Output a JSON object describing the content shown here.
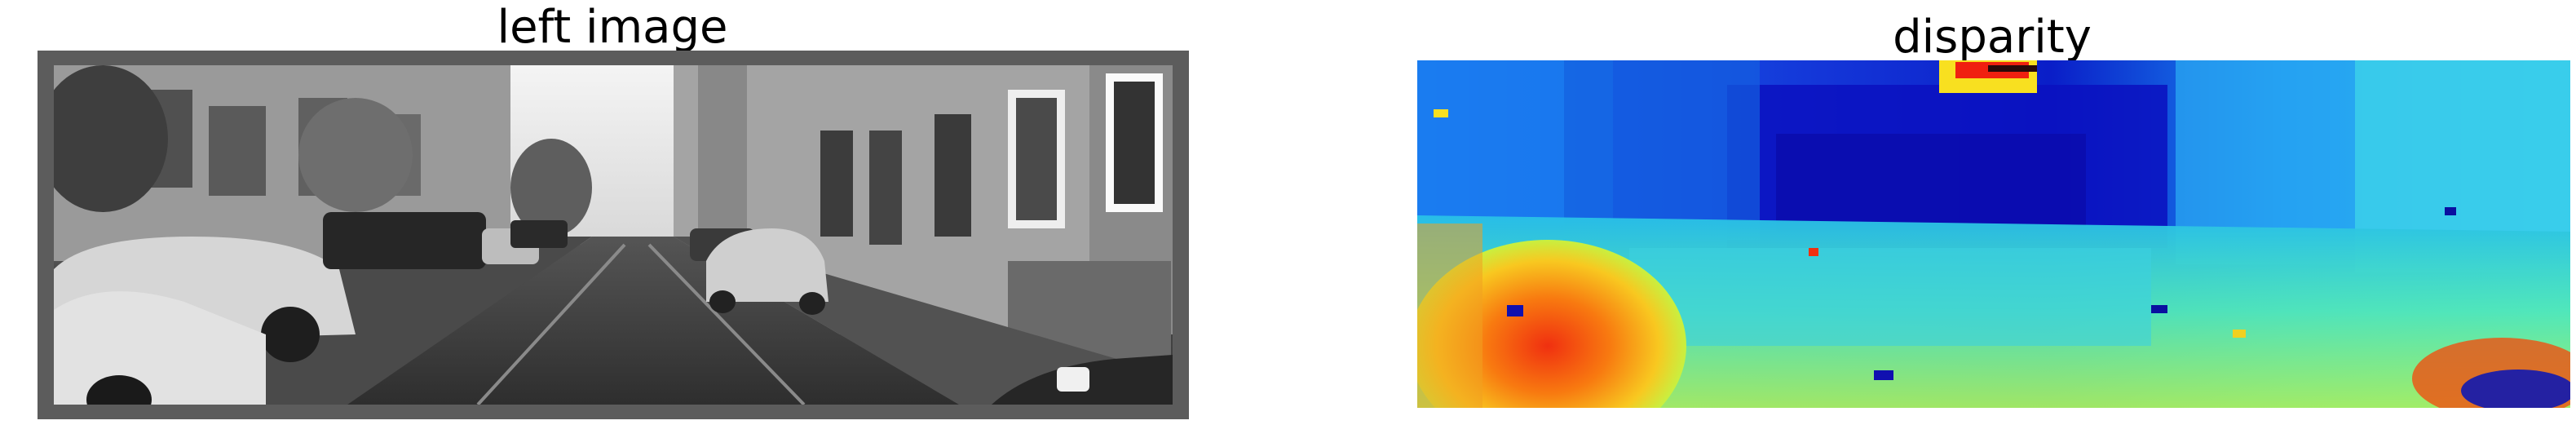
{
  "panels": {
    "left": {
      "title": "left image"
    },
    "right": {
      "title": "disparity"
    }
  },
  "colors": {
    "frame": "#5c5c5c",
    "disparity_far": "#0010c8",
    "disparity_mid": "#22c8e8",
    "disparity_near": "#e84010"
  }
}
